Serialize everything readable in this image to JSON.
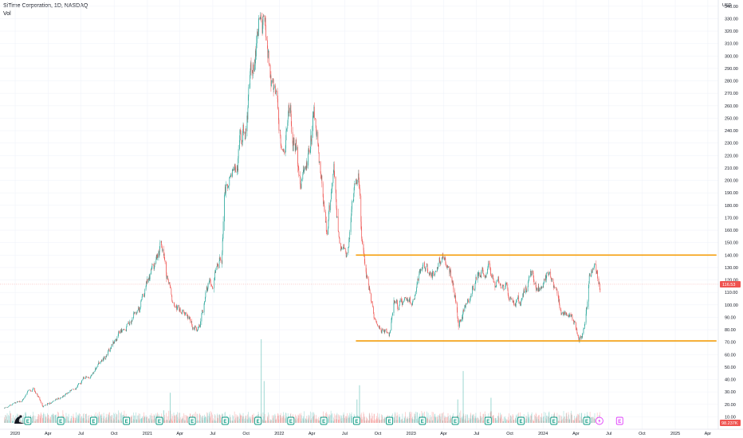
{
  "header": {
    "symbol_line": "SiTime Corporation, 1D, NASDAQ",
    "volume_label": "Vol"
  },
  "currency": "USD",
  "colors": {
    "up": "#26a69a",
    "down": "#ef5350",
    "level": "#f59e0b",
    "last_price": "#ef5350",
    "volume_badge": "#ef5350"
  },
  "chart_data": {
    "type": "candlestick",
    "x_range": [
      "2019-11-20",
      "2025-04-30"
    ],
    "y_range": [
      0,
      345
    ],
    "y_ticks": [
      10,
      20,
      30,
      40,
      50,
      60,
      70,
      80,
      90,
      100,
      110,
      120,
      130,
      140,
      150,
      160,
      170,
      180,
      190,
      200,
      210,
      220,
      230,
      240,
      250,
      260,
      270,
      280,
      290,
      300,
      310,
      320,
      330,
      340
    ],
    "x_ticks": [
      {
        "date": "2020-01-01",
        "label": "2020"
      },
      {
        "date": "2020-04-01",
        "label": "Apr"
      },
      {
        "date": "2020-07-01",
        "label": "Jul"
      },
      {
        "date": "2020-10-01",
        "label": "Oct"
      },
      {
        "date": "2021-01-01",
        "label": "2021"
      },
      {
        "date": "2021-04-01",
        "label": "Apr"
      },
      {
        "date": "2021-07-01",
        "label": "Jul"
      },
      {
        "date": "2021-10-01",
        "label": "Oct"
      },
      {
        "date": "2022-01-01",
        "label": "2022"
      },
      {
        "date": "2022-04-01",
        "label": "Apr"
      },
      {
        "date": "2022-07-01",
        "label": "Jul"
      },
      {
        "date": "2022-10-01",
        "label": "Oct"
      },
      {
        "date": "2023-01-01",
        "label": "2023"
      },
      {
        "date": "2023-04-01",
        "label": "Apr"
      },
      {
        "date": "2023-07-01",
        "label": "Jul"
      },
      {
        "date": "2023-10-01",
        "label": "Oct"
      },
      {
        "date": "2024-01-01",
        "label": "2024"
      },
      {
        "date": "2024-04-01",
        "label": "Apr"
      },
      {
        "date": "2024-07-01",
        "label": "Jul"
      },
      {
        "date": "2024-10-01",
        "label": "Oct"
      },
      {
        "date": "2025-01-01",
        "label": "2025"
      },
      {
        "date": "2025-04-01",
        "label": "Apr"
      }
    ],
    "price_path": [
      [
        "2019-12-01",
        17
      ],
      [
        "2020-01-15",
        22
      ],
      [
        "2020-02-20",
        33
      ],
      [
        "2020-03-18",
        18
      ],
      [
        "2020-05-01",
        25
      ],
      [
        "2020-07-01",
        38
      ],
      [
        "2020-09-01",
        55
      ],
      [
        "2020-10-15",
        75
      ],
      [
        "2020-12-01",
        95
      ],
      [
        "2021-01-15",
        125
      ],
      [
        "2021-02-12",
        148
      ],
      [
        "2021-03-10",
        100
      ],
      [
        "2021-05-20",
        80
      ],
      [
        "2021-06-20",
        120
      ],
      [
        "2021-07-26",
        138
      ],
      [
        "2021-08-01",
        180
      ],
      [
        "2021-08-20",
        215
      ],
      [
        "2021-10-01",
        250
      ],
      [
        "2021-11-12",
        335
      ],
      [
        "2021-12-01",
        290
      ],
      [
        "2022-01-05",
        240
      ],
      [
        "2022-02-01",
        260
      ],
      [
        "2022-03-01",
        200
      ],
      [
        "2022-03-20",
        210
      ],
      [
        "2022-04-07",
        262
      ],
      [
        "2022-05-12",
        160
      ],
      [
        "2022-06-01",
        200
      ],
      [
        "2022-06-15",
        150
      ],
      [
        "2022-07-05",
        140
      ],
      [
        "2022-08-08",
        205
      ],
      [
        "2022-08-20",
        140
      ],
      [
        "2022-09-30",
        80
      ],
      [
        "2022-11-01",
        76
      ],
      [
        "2022-11-15",
        100
      ],
      [
        "2023-01-05",
        100
      ],
      [
        "2023-02-01",
        125
      ],
      [
        "2023-03-01",
        125
      ],
      [
        "2023-03-28",
        140
      ],
      [
        "2023-04-26",
        118
      ],
      [
        "2023-05-12",
        85
      ],
      [
        "2023-06-01",
        100
      ],
      [
        "2023-07-01",
        125
      ],
      [
        "2023-08-01",
        138
      ],
      [
        "2023-08-20",
        122
      ],
      [
        "2023-09-25",
        110
      ],
      [
        "2023-10-30",
        98
      ],
      [
        "2023-11-30",
        125
      ],
      [
        "2023-12-20",
        118
      ],
      [
        "2024-01-20",
        122
      ],
      [
        "2024-02-20",
        95
      ],
      [
        "2024-03-15",
        88
      ],
      [
        "2024-04-18",
        75
      ],
      [
        "2024-05-01",
        98
      ],
      [
        "2024-05-08",
        120
      ],
      [
        "2024-05-20",
        130
      ],
      [
        "2024-06-07",
        116.53
      ]
    ],
    "horizontal_levels": [
      {
        "price": 140,
        "from": "2022-08-01",
        "to": "2025-04-25"
      },
      {
        "price": 71,
        "from": "2022-08-01",
        "to": "2025-04-25"
      }
    ],
    "volume_spikes": [
      [
        "2021-02-15",
        0.15
      ],
      [
        "2021-03-05",
        0.36
      ],
      [
        "2021-11-12",
        1.0
      ],
      [
        "2021-11-20",
        0.5
      ],
      [
        "2022-08-04",
        0.28
      ],
      [
        "2022-08-11",
        0.45
      ],
      [
        "2023-05-10",
        0.28
      ],
      [
        "2023-05-25",
        0.62
      ],
      [
        "2023-08-10",
        0.3
      ],
      [
        "2024-05-03",
        0.09
      ]
    ],
    "last_price": {
      "value": 116.53,
      "label": "116.53"
    },
    "volume_last": {
      "label": "98.237K"
    },
    "earnings_markers": [
      "2020-02-05",
      "2020-05-06",
      "2020-08-05",
      "2020-11-04",
      "2021-02-03",
      "2021-05-05",
      "2021-08-04",
      "2021-11-03",
      "2022-02-02",
      "2022-05-04",
      "2022-08-03",
      "2022-11-02",
      "2023-02-01",
      "2023-05-03",
      "2023-08-02",
      "2023-11-01",
      "2024-01-31",
      "2024-05-01"
    ],
    "earnings_label": "E",
    "future_earnings": "2024-07-31",
    "dividend_marker": "2024-06-05"
  }
}
